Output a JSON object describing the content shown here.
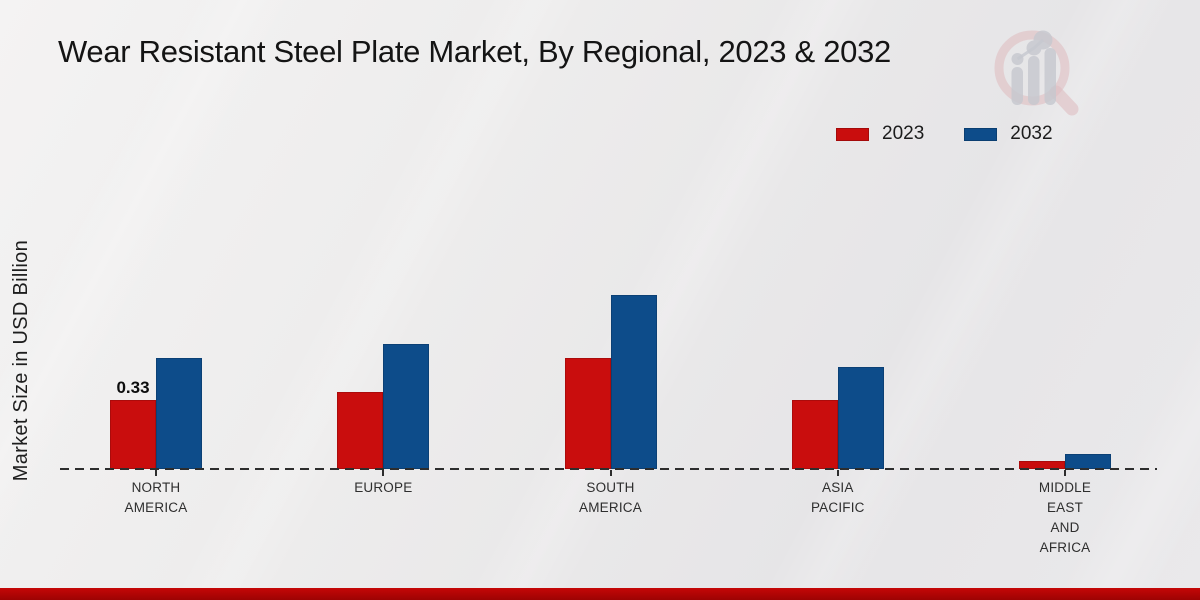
{
  "title": "Wear Resistant Steel Plate Market, By Regional, 2023 & 2032",
  "icons": {
    "logo_watermark": "magnifier-bar-chart-logo"
  },
  "accent": {
    "footer_bar_color": "#b30505",
    "series_2023_color": "#c90d0d",
    "series_2032_color": "#0d4c8a"
  },
  "chart_data": {
    "type": "bar",
    "title": "Wear Resistant Steel Plate Market, By Regional, 2023 & 2032",
    "xlabel": "",
    "ylabel": "Market Size in USD Billion",
    "ylim": [
      0,
      0.9
    ],
    "grid": false,
    "legend_position": "top-right",
    "baseline_style": "dashed",
    "categories": [
      {
        "name": "North America",
        "lines": [
          "NORTH",
          "AMERICA"
        ]
      },
      {
        "name": "Europe",
        "lines": [
          "EUROPE"
        ]
      },
      {
        "name": "South America",
        "lines": [
          "SOUTH",
          "AMERICA"
        ]
      },
      {
        "name": "Asia Pacific",
        "lines": [
          "ASIA",
          "PACIFIC"
        ]
      },
      {
        "name": "Middle East and Africa",
        "lines": [
          "MIDDLE",
          "EAST",
          "AND",
          "AFRICA"
        ]
      }
    ],
    "series": [
      {
        "name": "2023",
        "color": "#c90d0d",
        "values": [
          0.33,
          0.37,
          0.53,
          0.33,
          0.04
        ]
      },
      {
        "name": "2032",
        "color": "#0d4c8a",
        "values": [
          0.53,
          0.6,
          0.83,
          0.49,
          0.07
        ]
      }
    ],
    "annotations": [
      {
        "series_index": 0,
        "category_index": 0,
        "text": "0.33"
      }
    ]
  }
}
